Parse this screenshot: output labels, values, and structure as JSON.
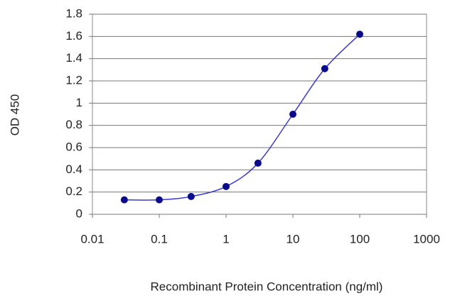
{
  "chart_data": {
    "type": "line",
    "xlabel": "Recombinant Protein Concentration (ng/ml)",
    "ylabel": "OD 450",
    "x": [
      0.03,
      0.1,
      0.3,
      1,
      3,
      10,
      30,
      100
    ],
    "values": [
      0.13,
      0.13,
      0.16,
      0.25,
      0.46,
      0.9,
      1.31,
      1.62
    ],
    "color": "#3a3ad0",
    "marker_color": "#0a0a8c",
    "xlim": [
      0.01,
      1000
    ],
    "xticks": [
      0.01,
      0.1,
      1,
      10,
      100,
      1000
    ],
    "log_x": true,
    "ylim": [
      0,
      1.8
    ],
    "yticks": [
      0,
      0.2,
      0.4,
      0.6,
      0.8,
      1,
      1.2,
      1.4,
      1.6,
      1.8
    ],
    "grid": true
  }
}
